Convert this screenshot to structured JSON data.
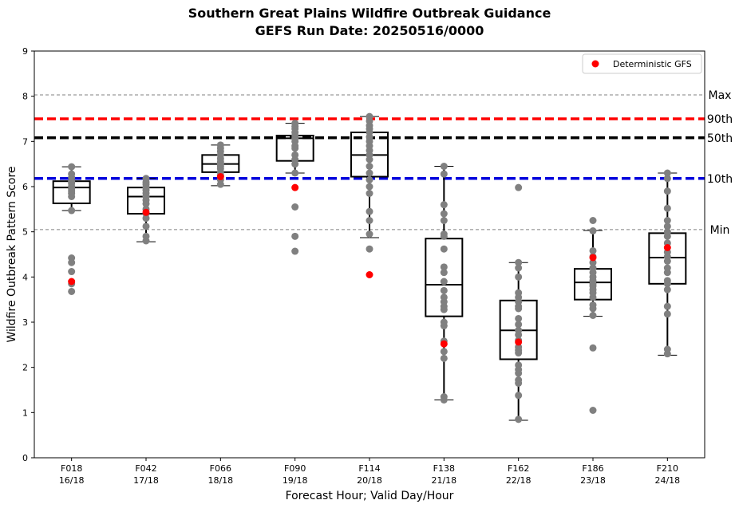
{
  "header": {
    "title_line1": "Southern Great Plains Wildfire Outbreak Guidance",
    "title_line2": "GEFS Run Date: 20250516/0000"
  },
  "chart_data": {
    "type": "box",
    "xlabel": "Forecast Hour; Valid Day/Hour",
    "ylabel": "Wildfire Outbreak Pattern Score",
    "ylim": [
      0,
      9
    ],
    "yticks": [
      "0",
      "1",
      "2",
      "3",
      "4",
      "5",
      "6",
      "7",
      "8",
      "9"
    ],
    "grid": false,
    "legend": {
      "position": "top-right",
      "entries": [
        "Deterministic GFS"
      ]
    },
    "colors": {
      "members": "#808080",
      "deterministic": "#ff0000",
      "max_min": "#808080",
      "p90": "#ff0000",
      "p50": "#000000",
      "p10": "#0000dd",
      "box": "#000000"
    },
    "reference_lines": [
      {
        "label": "Max",
        "value": 8.03,
        "style": "thin-dashed-gray"
      },
      {
        "label": "90th",
        "value": 7.5,
        "style": "thick-dashed-red"
      },
      {
        "label": "50th",
        "value": 7.08,
        "style": "thick-dashed-black"
      },
      {
        "label": "10th",
        "value": 6.18,
        "style": "thick-dashed-blue"
      },
      {
        "label": "Min",
        "value": 5.05,
        "style": "thin-dashed-gray"
      }
    ],
    "categories": [
      {
        "hour": "F018",
        "valid": "16/18",
        "box": {
          "whisker_low": 5.47,
          "q1": 5.63,
          "median": 5.98,
          "q3": 6.12,
          "whisker_high": 6.44
        },
        "deterministic": 3.9,
        "members": [
          6.44,
          6.28,
          6.2,
          6.12,
          6.07,
          6.0,
          5.95,
          5.9,
          5.85,
          5.78,
          5.47,
          4.42,
          4.32,
          4.12,
          3.85,
          3.68
        ]
      },
      {
        "hour": "F042",
        "valid": "17/18",
        "box": {
          "whisker_low": 4.78,
          "q1": 5.4,
          "median": 5.78,
          "q3": 5.98,
          "whisker_high": 6.18
        },
        "deterministic": 5.43,
        "members": [
          6.18,
          6.1,
          6.05,
          5.98,
          5.92,
          5.85,
          5.78,
          5.7,
          5.62,
          5.5,
          5.4,
          5.3,
          5.12,
          4.9,
          4.8
        ]
      },
      {
        "hour": "F066",
        "valid": "18/18",
        "box": {
          "whisker_low": 6.02,
          "q1": 6.32,
          "median": 6.5,
          "q3": 6.7,
          "whisker_high": 6.92
        },
        "deterministic": 6.22,
        "members": [
          6.92,
          6.85,
          6.78,
          6.7,
          6.62,
          6.55,
          6.5,
          6.45,
          6.4,
          6.32,
          6.25,
          6.15,
          6.05
        ]
      },
      {
        "hour": "F090",
        "valid": "19/18",
        "box": {
          "whisker_low": 6.3,
          "q1": 6.57,
          "median": 7.07,
          "q3": 7.13,
          "whisker_high": 7.4
        },
        "deterministic": 5.98,
        "members": [
          7.4,
          7.33,
          7.28,
          7.2,
          7.13,
          7.07,
          7.0,
          6.9,
          6.85,
          6.7,
          6.6,
          6.5,
          6.3,
          5.55,
          4.9,
          4.57
        ]
      },
      {
        "hour": "F114",
        "valid": "20/18",
        "box": {
          "whisker_low": 4.87,
          "q1": 6.22,
          "median": 6.7,
          "q3": 7.2,
          "whisker_high": 7.55
        },
        "deterministic": 4.05,
        "members": [
          7.55,
          7.45,
          7.35,
          7.28,
          7.2,
          7.1,
          7.0,
          6.9,
          6.8,
          6.7,
          6.6,
          6.45,
          6.3,
          6.15,
          6.0,
          5.85,
          5.45,
          5.25,
          4.95,
          4.62
        ]
      },
      {
        "hour": "F138",
        "valid": "21/18",
        "box": {
          "whisker_low": 1.28,
          "q1": 3.13,
          "median": 3.83,
          "q3": 4.85,
          "whisker_high": 6.45
        },
        "deterministic": 2.52,
        "members": [
          6.45,
          6.28,
          5.6,
          5.4,
          5.25,
          4.95,
          4.9,
          4.62,
          4.22,
          4.1,
          3.9,
          3.7,
          3.55,
          3.45,
          3.35,
          3.28,
          3.0,
          2.92,
          2.58,
          2.35,
          2.2,
          1.35,
          1.28
        ]
      },
      {
        "hour": "F162",
        "valid": "22/18",
        "box": {
          "whisker_low": 0.83,
          "q1": 2.18,
          "median": 2.82,
          "q3": 3.48,
          "whisker_high": 4.32
        },
        "deterministic": 2.56,
        "members": [
          5.98,
          4.32,
          4.2,
          4.0,
          3.65,
          3.55,
          3.45,
          3.35,
          3.3,
          3.08,
          2.95,
          2.82,
          2.72,
          2.6,
          2.45,
          2.38,
          2.32,
          2.05,
          1.95,
          1.87,
          1.72,
          1.65,
          1.38,
          0.85
        ]
      },
      {
        "hour": "F186",
        "valid": "23/18",
        "box": {
          "whisker_low": 3.13,
          "q1": 3.5,
          "median": 3.88,
          "q3": 4.18,
          "whisker_high": 5.03
        },
        "deterministic": 4.43,
        "members": [
          5.25,
          5.02,
          4.58,
          4.45,
          4.32,
          4.2,
          4.1,
          4.0,
          3.92,
          3.85,
          3.8,
          3.72,
          3.65,
          3.55,
          3.38,
          3.3,
          3.15,
          2.43,
          1.05
        ]
      },
      {
        "hour": "F210",
        "valid": "24/18",
        "box": {
          "whisker_low": 2.27,
          "q1": 3.85,
          "median": 4.43,
          "q3": 4.97,
          "whisker_high": 6.3
        },
        "deterministic": 4.65,
        "members": [
          6.3,
          6.18,
          5.9,
          5.52,
          5.25,
          5.12,
          5.0,
          4.9,
          4.75,
          4.55,
          4.45,
          4.35,
          4.2,
          4.1,
          3.92,
          3.85,
          3.72,
          3.35,
          3.18,
          2.4,
          2.3
        ]
      }
    ]
  }
}
